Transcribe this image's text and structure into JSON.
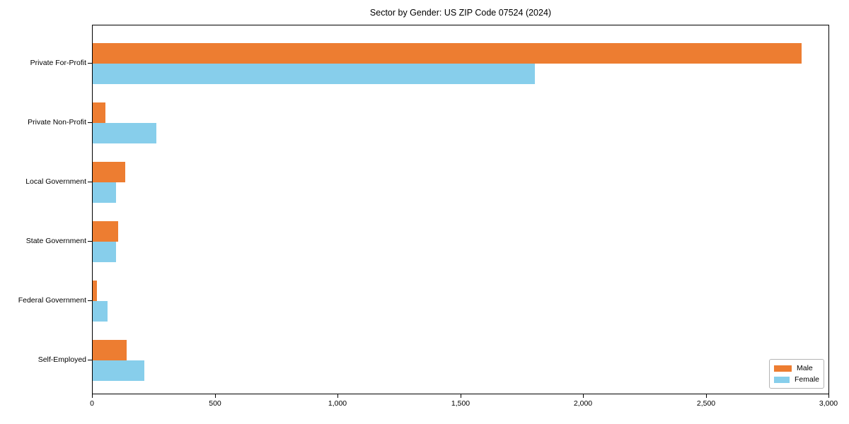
{
  "chart_data": {
    "type": "bar",
    "orientation": "horizontal",
    "title": "Sector by Gender: US ZIP Code 07524 (2024)",
    "categories": [
      "Private For-Profit",
      "Private Non-Profit",
      "Local Government",
      "State Government",
      "Federal Government",
      "Self-Employed"
    ],
    "series": [
      {
        "name": "Male",
        "color": "#ED7D31",
        "values": [
          2885,
          52,
          131,
          103,
          17,
          137
        ]
      },
      {
        "name": "Female",
        "color": "#87CEEB",
        "values": [
          1800,
          259,
          96,
          95,
          61,
          209
        ]
      }
    ],
    "xlabel": "",
    "ylabel": "",
    "xlim": [
      0,
      3000
    ],
    "xticks": {
      "values": [
        0,
        500,
        1000,
        1500,
        2000,
        2500,
        3000
      ],
      "labels": [
        "0",
        "500",
        "1,000",
        "1,500",
        "2,000",
        "2,500",
        "3,000"
      ]
    },
    "grid": false,
    "legend_position": "lower right"
  }
}
